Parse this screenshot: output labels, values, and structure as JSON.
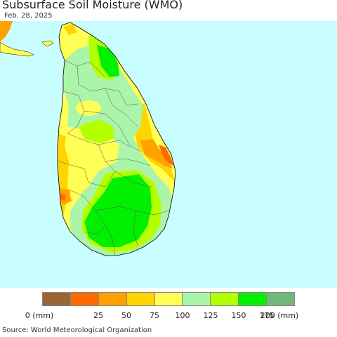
{
  "header": {
    "title": "Subsurface Soil Moisture (WMO)",
    "date": "Feb. 28, 2025"
  },
  "colors": {
    "sea": "#c8feff",
    "land_default": "#ffff55"
  },
  "legend": {
    "colors": [
      "#9a6436",
      "#ff6a00",
      "#ffa200",
      "#ffd400",
      "#ffff55",
      "#aaf5aa",
      "#b4ff00",
      "#00f000",
      "#72b87a"
    ],
    "labels": [
      "0 (mm)",
      "25",
      "50",
      "75",
      "100",
      "125",
      "150",
      "175",
      "200 (mm)"
    ]
  },
  "footer": {
    "source": "Source: World Meteorological Organization"
  }
}
